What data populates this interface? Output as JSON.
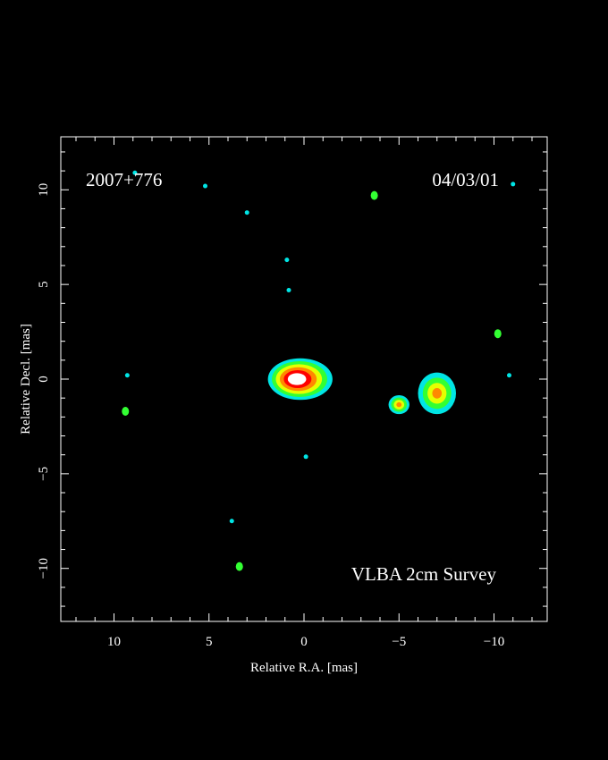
{
  "chart_data": {
    "type": "heatmap",
    "xlabel": "Relative R.A. [mas]",
    "ylabel": "Relative Decl. [mas]",
    "xlim": [
      12.8,
      -12.8
    ],
    "ylim": [
      -12.8,
      12.8
    ],
    "xticks": [
      10,
      5,
      0,
      -5,
      -10
    ],
    "yticks": [
      10,
      5,
      0,
      -5,
      -10
    ],
    "xtick_labels": [
      "10",
      "5",
      "0",
      "−5",
      "−10"
    ],
    "ytick_labels": [
      "10",
      "5",
      "0",
      "−5",
      "−10"
    ],
    "grid": false,
    "colormap": [
      "#0033ff",
      "#00e5e5",
      "#33ff33",
      "#e6ff00",
      "#ff8800",
      "#ff0000",
      "#ffffff"
    ],
    "annotations": {
      "source": "2007+776",
      "epoch": "04/03/01",
      "survey": "VLBA 2cm Survey"
    },
    "components": [
      {
        "name": "core",
        "x": 0.2,
        "y": 0.0,
        "peak": 1.0,
        "extent_x": 3.4,
        "extent_y": 2.2
      },
      {
        "name": "jet-knot-1",
        "x": -5.0,
        "y": -1.35,
        "peak": 0.42,
        "extent_x": 1.1,
        "extent_y": 1.0
      },
      {
        "name": "jet-knot-2",
        "x": -7.0,
        "y": -0.75,
        "peak": 0.42,
        "extent_x": 2.0,
        "extent_y": 2.2
      }
    ],
    "noise_spots": [
      {
        "x": 8.9,
        "y": 10.9,
        "level": 0.18
      },
      {
        "x": 5.2,
        "y": 10.2,
        "level": 0.18
      },
      {
        "x": 3.0,
        "y": 8.8,
        "level": 0.14
      },
      {
        "x": -3.7,
        "y": 9.7,
        "level": 0.3
      },
      {
        "x": -11.0,
        "y": 10.3,
        "level": 0.18
      },
      {
        "x": 0.9,
        "y": 6.3,
        "level": 0.12
      },
      {
        "x": 0.8,
        "y": 4.7,
        "level": 0.18
      },
      {
        "x": -10.2,
        "y": 2.4,
        "level": 0.3
      },
      {
        "x": -10.8,
        "y": 0.2,
        "level": 0.16
      },
      {
        "x": 9.3,
        "y": 0.2,
        "level": 0.16
      },
      {
        "x": 9.4,
        "y": -1.7,
        "level": 0.3
      },
      {
        "x": -0.1,
        "y": -4.1,
        "level": 0.16
      },
      {
        "x": 3.8,
        "y": -7.5,
        "level": 0.12
      },
      {
        "x": 3.4,
        "y": -9.9,
        "level": 0.3
      }
    ]
  }
}
